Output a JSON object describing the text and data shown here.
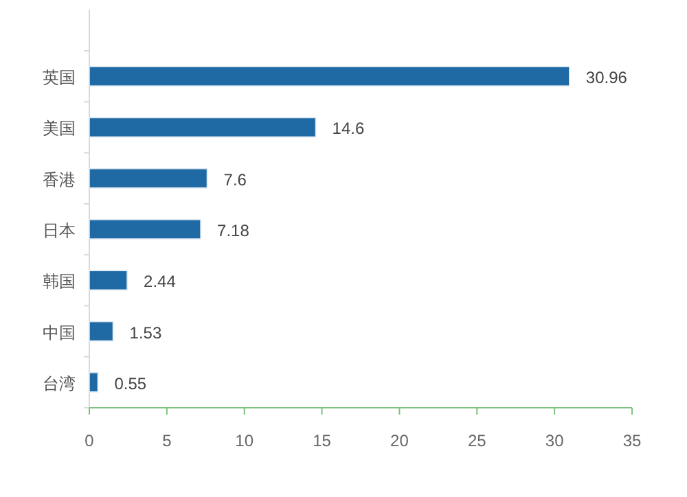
{
  "chart_data": {
    "type": "bar",
    "orientation": "horizontal",
    "categories": [
      "英国",
      "美国",
      "香港",
      "日本",
      "韩国",
      "中国",
      "台湾"
    ],
    "values": [
      30.96,
      14.6,
      7.6,
      7.18,
      2.44,
      1.53,
      0.55
    ],
    "color": "#1f6aa5",
    "xlim": [
      0,
      35
    ],
    "xticks": [
      0,
      5,
      10,
      15,
      20,
      25,
      30,
      35
    ],
    "data_labels": true,
    "grid": false
  }
}
